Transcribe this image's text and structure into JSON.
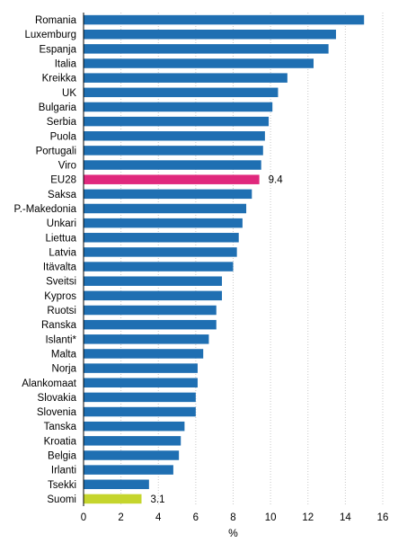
{
  "chart_data": {
    "type": "bar",
    "orientation": "horizontal",
    "categories": [
      "Romania",
      "Luxemburg",
      "Espanja",
      "Italia",
      "Kreikka",
      "UK",
      "Bulgaria",
      "Serbia",
      "Puola",
      "Portugali",
      "Viro",
      "EU28",
      "Saksa",
      "P.-Makedonia",
      "Unkari",
      "Liettua",
      "Latvia",
      "Itävalta",
      "Sveitsi",
      "Kypros",
      "Ruotsi",
      "Ranska",
      "Islanti*",
      "Malta",
      "Norja",
      "Alankomaat",
      "Slovakia",
      "Slovenia",
      "Tanska",
      "Kroatia",
      "Belgia",
      "Irlanti",
      "Tsekki",
      "Suomi"
    ],
    "values": [
      15.0,
      13.5,
      13.1,
      12.3,
      10.9,
      10.4,
      10.1,
      9.9,
      9.7,
      9.6,
      9.5,
      9.4,
      9.0,
      8.7,
      8.5,
      8.3,
      8.2,
      8.0,
      7.4,
      7.4,
      7.1,
      7.1,
      6.7,
      6.4,
      6.1,
      6.1,
      6.0,
      6.0,
      5.4,
      5.2,
      5.1,
      4.8,
      3.5,
      3.1
    ],
    "highlight": {
      "EU28": "#e0287d",
      "Suomi": "#c5d52d"
    },
    "data_labels": {
      "EU28": "9.4",
      "Suomi": "3.1"
    },
    "xticks": [
      "0",
      "2",
      "4",
      "6",
      "8",
      "10",
      "12",
      "14",
      "16"
    ],
    "xlim": [
      0,
      16
    ],
    "xlabel": "%",
    "title": "",
    "grid": "vertical",
    "colors": {
      "bar": "#1f6fb2",
      "grid": "#c8c8c8",
      "axis": "#000000"
    }
  }
}
